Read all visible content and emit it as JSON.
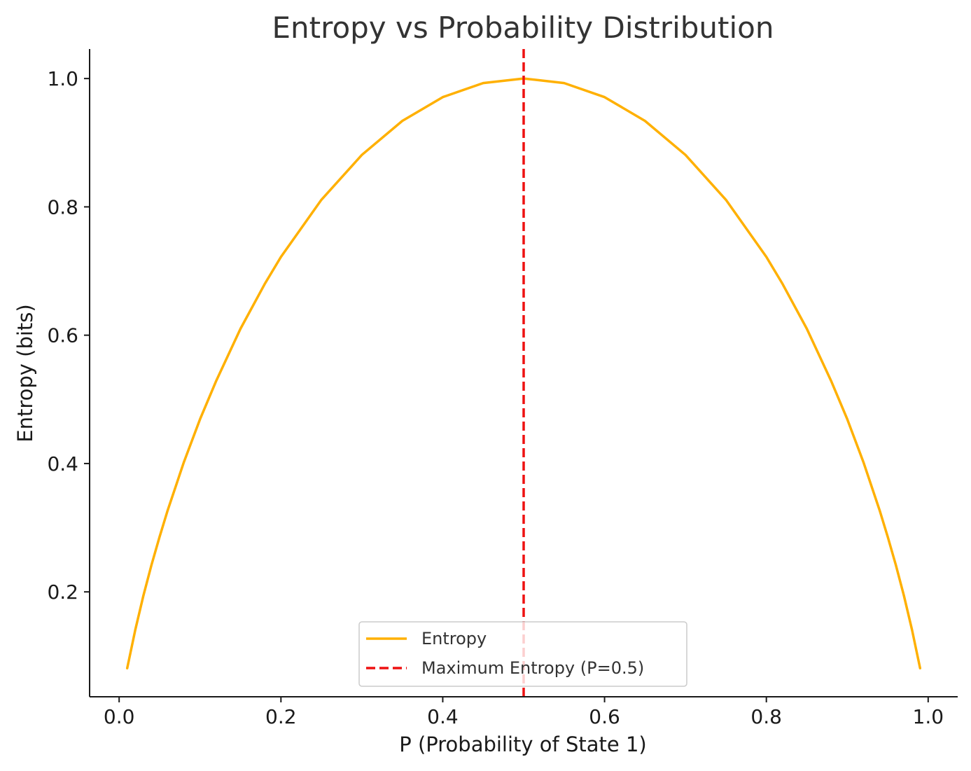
{
  "chart_data": {
    "type": "line",
    "title": "Entropy vs Probability Distribution",
    "xlabel": "P (Probability of State 1)",
    "ylabel": "Entropy (bits)",
    "xlim": [
      -0.0365,
      1.0365
    ],
    "ylim": [
      0.0365,
      1.046
    ],
    "xticks": [
      0.0,
      0.2,
      0.4,
      0.6,
      0.8,
      1.0
    ],
    "xtick_labels": [
      "0.0",
      "0.2",
      "0.4",
      "0.6",
      "0.8",
      "1.0"
    ],
    "yticks": [
      0.2,
      0.4,
      0.6,
      0.8,
      1.0
    ],
    "ytick_labels": [
      "0.2",
      "0.4",
      "0.6",
      "0.8",
      "1.0"
    ],
    "grid": false,
    "legend_placement": "lower-center",
    "series": [
      {
        "name": "Entropy",
        "color": "#FFB000",
        "style": "solid",
        "x": [
          0.01,
          0.02,
          0.03,
          0.04,
          0.05,
          0.06,
          0.08,
          0.1,
          0.12,
          0.15,
          0.18,
          0.2,
          0.25,
          0.3,
          0.35,
          0.4,
          0.45,
          0.5,
          0.55,
          0.6,
          0.65,
          0.7,
          0.75,
          0.8,
          0.82,
          0.85,
          0.88,
          0.9,
          0.92,
          0.94,
          0.95,
          0.96,
          0.97,
          0.98,
          0.99
        ],
        "y": [
          0.081,
          0.141,
          0.194,
          0.242,
          0.286,
          0.327,
          0.402,
          0.469,
          0.529,
          0.61,
          0.68,
          0.722,
          0.811,
          0.881,
          0.934,
          0.971,
          0.993,
          1.0,
          0.993,
          0.971,
          0.934,
          0.881,
          0.811,
          0.722,
          0.68,
          0.61,
          0.529,
          0.469,
          0.402,
          0.327,
          0.286,
          0.242,
          0.194,
          0.141,
          0.081
        ]
      },
      {
        "name": "Maximum Entropy (P=0.5)",
        "color": "#EE1111",
        "style": "dashed",
        "type": "vline",
        "x": 0.5
      }
    ]
  }
}
